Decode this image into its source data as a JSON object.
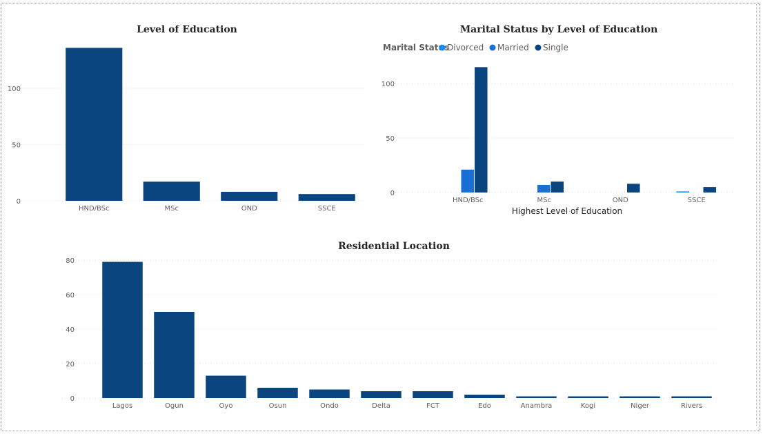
{
  "chart_data": [
    {
      "id": "education",
      "type": "bar",
      "title": "Level of Education",
      "xlabel": "",
      "ylabel": "",
      "categories": [
        "HND/BSc",
        "MSc",
        "OND",
        "SSCE"
      ],
      "values": [
        136,
        17,
        8,
        6
      ],
      "ylim": [
        0,
        140
      ],
      "yticks": [
        0,
        50,
        100
      ],
      "grid": true,
      "color": "#0b4580"
    },
    {
      "id": "marital",
      "type": "bar",
      "title": "Marital Status by Level of Education",
      "xlabel": "Highest Level of Education",
      "ylabel": "",
      "categories": [
        "HND/BSc",
        "MSc",
        "OND",
        "SSCE"
      ],
      "legend": {
        "title": "Marital Status",
        "position": "top-left"
      },
      "series": [
        {
          "name": "Divorced",
          "values": [
            0,
            0,
            0,
            1
          ],
          "color": "#118dff"
        },
        {
          "name": "Married",
          "values": [
            21,
            7,
            0,
            0
          ],
          "color": "#1a6fd6"
        },
        {
          "name": "Single",
          "values": [
            115,
            10,
            8,
            5
          ],
          "color": "#0b4580"
        }
      ],
      "ylim": [
        0,
        125
      ],
      "yticks": [
        0,
        50,
        100
      ],
      "grid": true
    },
    {
      "id": "location",
      "type": "bar",
      "title": "Residential Location",
      "xlabel": "",
      "ylabel": "",
      "categories": [
        "Lagos",
        "Ogun",
        "Oyo",
        "Osun",
        "Ondo",
        "Delta",
        "FCT",
        "Edo",
        "Anambra",
        "Kogi",
        "Niger",
        "Rivers"
      ],
      "values": [
        79,
        50,
        13,
        6,
        5,
        4,
        4,
        2,
        1,
        1,
        1,
        1
      ],
      "ylim": [
        0,
        80
      ],
      "yticks": [
        0,
        20,
        40,
        60,
        80
      ],
      "grid": true,
      "color": "#0b4580"
    }
  ]
}
